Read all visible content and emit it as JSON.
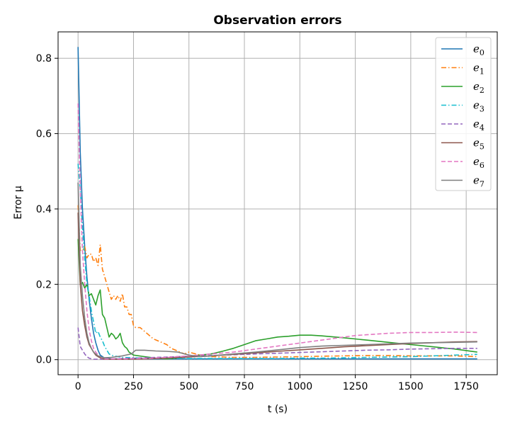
{
  "chart_data": {
    "type": "line",
    "title": "Observation errors",
    "xlabel": "t (s)",
    "ylabel": "Error μ",
    "xlim": [
      -90,
      1890
    ],
    "ylim": [
      -0.04,
      0.87
    ],
    "xticks": [
      0,
      250,
      500,
      750,
      1000,
      1250,
      1500,
      1750
    ],
    "yticks": [
      0.0,
      0.2,
      0.4,
      0.6,
      0.8
    ],
    "xtick_labels": [
      "0",
      "250",
      "500",
      "750",
      "1000",
      "1250",
      "1500",
      "1750"
    ],
    "ytick_labels": [
      "0.0",
      "0.2",
      "0.4",
      "0.6",
      "0.8"
    ],
    "grid": true,
    "legend_position": "top-right",
    "series": [
      {
        "name": "e",
        "subscript": "0",
        "color": "#1f77b4",
        "style": "solid",
        "x": [
          0,
          10,
          20,
          30,
          40,
          50,
          60,
          70,
          80,
          90,
          100,
          120,
          150,
          200,
          300,
          500,
          750,
          1000,
          1250,
          1500,
          1800
        ],
        "y": [
          0.83,
          0.55,
          0.4,
          0.3,
          0.22,
          0.16,
          0.11,
          0.07,
          0.045,
          0.025,
          0.012,
          0.004,
          0.002,
          0.002,
          0.002,
          0.002,
          0.002,
          0.002,
          0.002,
          0.002,
          0.002
        ]
      },
      {
        "name": "e",
        "subscript": "1",
        "color": "#ff7f0e",
        "style": "dashdot",
        "x": [
          0,
          10,
          20,
          30,
          40,
          50,
          60,
          70,
          80,
          90,
          100,
          110,
          120,
          130,
          140,
          150,
          160,
          170,
          180,
          190,
          200,
          210,
          220,
          230,
          240,
          250,
          260,
          280,
          300,
          320,
          340,
          360,
          380,
          400,
          420,
          440,
          460,
          480,
          500,
          550,
          600,
          700,
          800,
          900,
          1000,
          1100,
          1200,
          1300,
          1400,
          1500,
          1600,
          1700,
          1800
        ],
        "y": [
          0.41,
          0.29,
          0.29,
          0.3,
          0.27,
          0.28,
          0.28,
          0.26,
          0.27,
          0.25,
          0.305,
          0.24,
          0.22,
          0.2,
          0.18,
          0.16,
          0.17,
          0.16,
          0.17,
          0.155,
          0.175,
          0.14,
          0.14,
          0.12,
          0.12,
          0.09,
          0.085,
          0.085,
          0.075,
          0.065,
          0.055,
          0.05,
          0.045,
          0.04,
          0.03,
          0.025,
          0.02,
          0.015,
          0.02,
          0.012,
          0.008,
          0.006,
          0.006,
          0.007,
          0.008,
          0.009,
          0.01,
          0.011,
          0.011,
          0.01,
          0.01,
          0.01,
          0.008
        ]
      },
      {
        "name": "e",
        "subscript": "2",
        "color": "#2ca02c",
        "style": "solid",
        "x": [
          0,
          10,
          20,
          30,
          40,
          50,
          60,
          70,
          80,
          90,
          100,
          110,
          120,
          130,
          140,
          150,
          160,
          170,
          180,
          190,
          200,
          210,
          220,
          230,
          250,
          300,
          350,
          400,
          450,
          500,
          550,
          600,
          650,
          700,
          750,
          800,
          850,
          900,
          950,
          1000,
          1050,
          1100,
          1200,
          1300,
          1400,
          1500,
          1600,
          1700,
          1800
        ],
        "y": [
          0.32,
          0.2,
          0.205,
          0.19,
          0.2,
          0.17,
          0.175,
          0.16,
          0.145,
          0.17,
          0.185,
          0.12,
          0.11,
          0.085,
          0.06,
          0.07,
          0.065,
          0.055,
          0.06,
          0.07,
          0.045,
          0.035,
          0.03,
          0.02,
          0.012,
          0.008,
          0.004,
          0.002,
          0.004,
          0.008,
          0.012,
          0.015,
          0.022,
          0.03,
          0.04,
          0.05,
          0.055,
          0.06,
          0.062,
          0.065,
          0.065,
          0.063,
          0.058,
          0.052,
          0.046,
          0.04,
          0.034,
          0.028,
          0.02
        ]
      },
      {
        "name": "e",
        "subscript": "3",
        "color": "#17becf",
        "style": "dashdot",
        "x": [
          0,
          10,
          20,
          30,
          40,
          50,
          60,
          70,
          80,
          90,
          100,
          110,
          120,
          130,
          140,
          150,
          160,
          200,
          300,
          400,
          500,
          600,
          700,
          800,
          900,
          1000,
          1100,
          1200,
          1300,
          1400,
          1500,
          1600,
          1700,
          1800
        ],
        "y": [
          0.52,
          0.45,
          0.35,
          0.27,
          0.2,
          0.17,
          0.13,
          0.1,
          0.07,
          0.075,
          0.06,
          0.05,
          0.035,
          0.025,
          0.015,
          0.012,
          0.01,
          0.006,
          0.004,
          0.004,
          0.003,
          0.003,
          0.003,
          0.003,
          0.003,
          0.004,
          0.004,
          0.005,
          0.006,
          0.007,
          0.008,
          0.01,
          0.012,
          0.014
        ]
      },
      {
        "name": "e",
        "subscript": "4",
        "color": "#9467bd",
        "style": "dashed",
        "x": [
          0,
          10,
          20,
          30,
          40,
          50,
          60,
          70,
          80,
          100,
          150,
          200,
          300,
          400,
          500,
          600,
          700,
          800,
          900,
          1000,
          1100,
          1200,
          1300,
          1400,
          1500,
          1600,
          1700,
          1800
        ],
        "y": [
          0.085,
          0.035,
          0.025,
          0.015,
          0.008,
          0.004,
          0.002,
          0.001,
          0.001,
          0.001,
          0.002,
          0.003,
          0.005,
          0.007,
          0.009,
          0.011,
          0.013,
          0.015,
          0.017,
          0.019,
          0.021,
          0.023,
          0.025,
          0.026,
          0.028,
          0.029,
          0.03,
          0.03
        ]
      },
      {
        "name": "e",
        "subscript": "5",
        "color": "#8c564b",
        "style": "solid",
        "x": [
          0,
          10,
          20,
          30,
          40,
          50,
          60,
          70,
          80,
          90,
          100,
          110,
          120,
          150,
          200,
          300,
          400,
          500,
          600,
          700,
          800,
          900,
          1000,
          1100,
          1200,
          1300,
          1400,
          1500,
          1600,
          1700,
          1800
        ],
        "y": [
          0.39,
          0.2,
          0.13,
          0.09,
          0.06,
          0.04,
          0.03,
          0.02,
          0.012,
          0.008,
          0.005,
          0.003,
          0.001,
          0.001,
          0.001,
          0.002,
          0.004,
          0.007,
          0.01,
          0.014,
          0.018,
          0.022,
          0.026,
          0.03,
          0.034,
          0.037,
          0.04,
          0.043,
          0.045,
          0.047,
          0.048
        ]
      },
      {
        "name": "e",
        "subscript": "6",
        "color": "#e377c2",
        "style": "dashed",
        "x": [
          0,
          10,
          20,
          30,
          40,
          50,
          60,
          70,
          80,
          90,
          100,
          110,
          120,
          150,
          200,
          300,
          400,
          500,
          600,
          700,
          800,
          900,
          1000,
          1100,
          1200,
          1250,
          1300,
          1350,
          1400,
          1450,
          1500,
          1600,
          1700,
          1800
        ],
        "y": [
          0.68,
          0.45,
          0.29,
          0.2,
          0.13,
          0.08,
          0.05,
          0.03,
          0.02,
          0.012,
          0.008,
          0.004,
          0.002,
          0.002,
          0.002,
          0.003,
          0.006,
          0.01,
          0.015,
          0.02,
          0.028,
          0.036,
          0.044,
          0.052,
          0.06,
          0.064,
          0.066,
          0.068,
          0.07,
          0.071,
          0.072,
          0.072,
          0.073,
          0.072
        ]
      },
      {
        "name": "e",
        "subscript": "7",
        "color": "#7f7f7f",
        "style": "solid",
        "x": [
          0,
          10,
          20,
          30,
          40,
          50,
          60,
          70,
          80,
          90,
          100,
          110,
          120,
          150,
          200,
          240,
          260,
          300,
          350,
          400,
          450,
          500,
          550,
          600,
          700,
          800,
          900,
          1000,
          1100,
          1200,
          1300,
          1400,
          1500,
          1600,
          1700,
          1800
        ],
        "y": [
          0.47,
          0.25,
          0.17,
          0.11,
          0.07,
          0.045,
          0.03,
          0.02,
          0.015,
          0.01,
          0.008,
          0.006,
          0.005,
          0.006,
          0.01,
          0.015,
          0.025,
          0.025,
          0.023,
          0.022,
          0.02,
          0.012,
          0.008,
          0.01,
          0.015,
          0.02,
          0.026,
          0.032,
          0.036,
          0.038,
          0.04,
          0.042,
          0.044,
          0.045,
          0.046,
          0.047
        ]
      }
    ]
  }
}
